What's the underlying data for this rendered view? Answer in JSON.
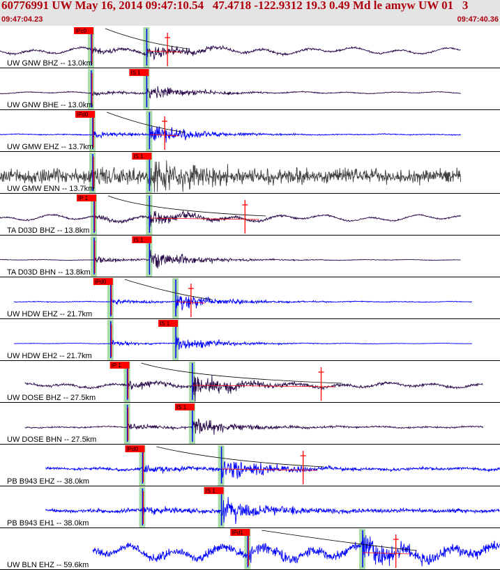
{
  "header": {
    "title": "60776991 UW May 16, 2014 09:47:10.54   47.4718 -122.9312 19.3 0.49 Md le amyw UW 01   3",
    "time_start": "09:47:04.23",
    "time_end": "09:47:40.36"
  },
  "colors": {
    "title": "#b0000c",
    "header_bg": "#e4e4e4",
    "pick_box": "#ff0000",
    "pick_band": "#a8dca8",
    "trace_blue": "#0000ff",
    "trace_purple": "#2a0a4a",
    "trace_gray": "#404040"
  },
  "chart_data": {
    "type": "line",
    "title": "60776991 UW May 16, 2014 09:47:10.54   47.4718 -122.9312 19.3 0.49 Md le amyw UW 01   3",
    "x_range": [
      "09:47:04.23",
      "09:47:40.36"
    ],
    "traces": [
      {
        "label": "UW GNW BHZ -- 13.0km",
        "color": "#2a0a4a",
        "pick": "IPc0",
        "p": 6.6,
        "s": 10.6,
        "coda": 12.1,
        "start": 0,
        "end": 33.3,
        "amp": 14,
        "noise": 0.12,
        "lf": 0.6
      },
      {
        "label": "UW GNW BHE -- 13.0km",
        "color": "#2a0a4a",
        "pick": "IS 1",
        "p": 6.6,
        "s": 10.6,
        "coda": null,
        "start": 0,
        "end": 33.3,
        "amp": 15,
        "noise": 0.05,
        "lf": 0.15
      },
      {
        "label": "UW GMW EHZ -- 13.7km",
        "color": "#0000ff",
        "pick": "IPd0",
        "p": 6.7,
        "s": 10.8,
        "coda": 11.9,
        "start": 0,
        "end": 33.3,
        "amp": 19,
        "noise": 0.05,
        "lf": 0.05
      },
      {
        "label": "UW GMW ENN -- 13.7km",
        "color": "#404040",
        "pick": "IS 1",
        "p": 6.7,
        "s": 10.8,
        "coda": null,
        "start": 0,
        "end": 33.3,
        "amp": 20,
        "noise": 0.7,
        "lf": 0.1
      },
      {
        "label": "TA D03D BHZ -- 13.8km",
        "color": "#2a0a4a",
        "pick": "IP 1",
        "p": 6.8,
        "s": 10.8,
        "coda": 17.7,
        "start": 0,
        "end": 33.3,
        "amp": 14,
        "noise": 0.1,
        "lf": 0.6
      },
      {
        "label": "TA D03D BHN -- 13.8km",
        "color": "#2a0a4a",
        "pick": "IS 1",
        "p": 6.8,
        "s": 10.8,
        "coda": null,
        "start": 0,
        "end": 33.3,
        "amp": 18,
        "noise": 0.03,
        "lf": 0.05
      },
      {
        "label": "UW HDW EHZ -- 21.7km",
        "color": "#0000ff",
        "pick": "IPd0",
        "p": 8.0,
        "s": 12.7,
        "coda": 13.8,
        "start": 1.0,
        "end": 34.1,
        "amp": 16,
        "noise": 0.05,
        "lf": 0.05
      },
      {
        "label": "UW HDW EH2 -- 21.7km",
        "color": "#0000ff",
        "pick": "IS 1",
        "p": 8.0,
        "s": 12.7,
        "coda": null,
        "start": 1.0,
        "end": 34.1,
        "amp": 14,
        "noise": 0.03,
        "lf": 0.05
      },
      {
        "label": "UW DOSE BHZ -- 27.5km",
        "color": "#2a0a4a",
        "pick": "IP 1",
        "p": 9.2,
        "s": 13.9,
        "coda": 23.2,
        "start": 1.8,
        "end": 34.9,
        "amp": 20,
        "noise": 0.12,
        "lf": 0.3
      },
      {
        "label": "UW DOSE BHN -- 27.5km",
        "color": "#2a0a4a",
        "pick": "IS 1",
        "p": 9.2,
        "s": 13.9,
        "coda": null,
        "start": 1.8,
        "end": 34.9,
        "amp": 17,
        "noise": 0.08,
        "lf": 0.1
      },
      {
        "label": "PB B943 EHZ -- 38.0km",
        "color": "#0000ff",
        "pick": "IPd0",
        "p": 10.3,
        "s": 16.0,
        "coda": 21.9,
        "start": 3.3,
        "end": 36.4,
        "amp": 22,
        "noise": 0.12,
        "lf": 0.1
      },
      {
        "label": "PB B943 EH1 -- 38.0km",
        "color": "#0000ff",
        "pick": "IS 1",
        "p": 10.3,
        "s": 16.0,
        "coda": null,
        "start": 3.3,
        "end": 36.4,
        "amp": 22,
        "noise": 0.15,
        "lf": 0.1
      },
      {
        "label": "UW BLN EHZ -- 59.6km",
        "color": "#0000ff",
        "pick": "IPd1",
        "p": 17.9,
        "s": 26.2,
        "coda": 28.6,
        "start": 6.7,
        "end": 40.0,
        "amp": 20,
        "noise": 0.4,
        "lf": 0.9
      }
    ]
  }
}
